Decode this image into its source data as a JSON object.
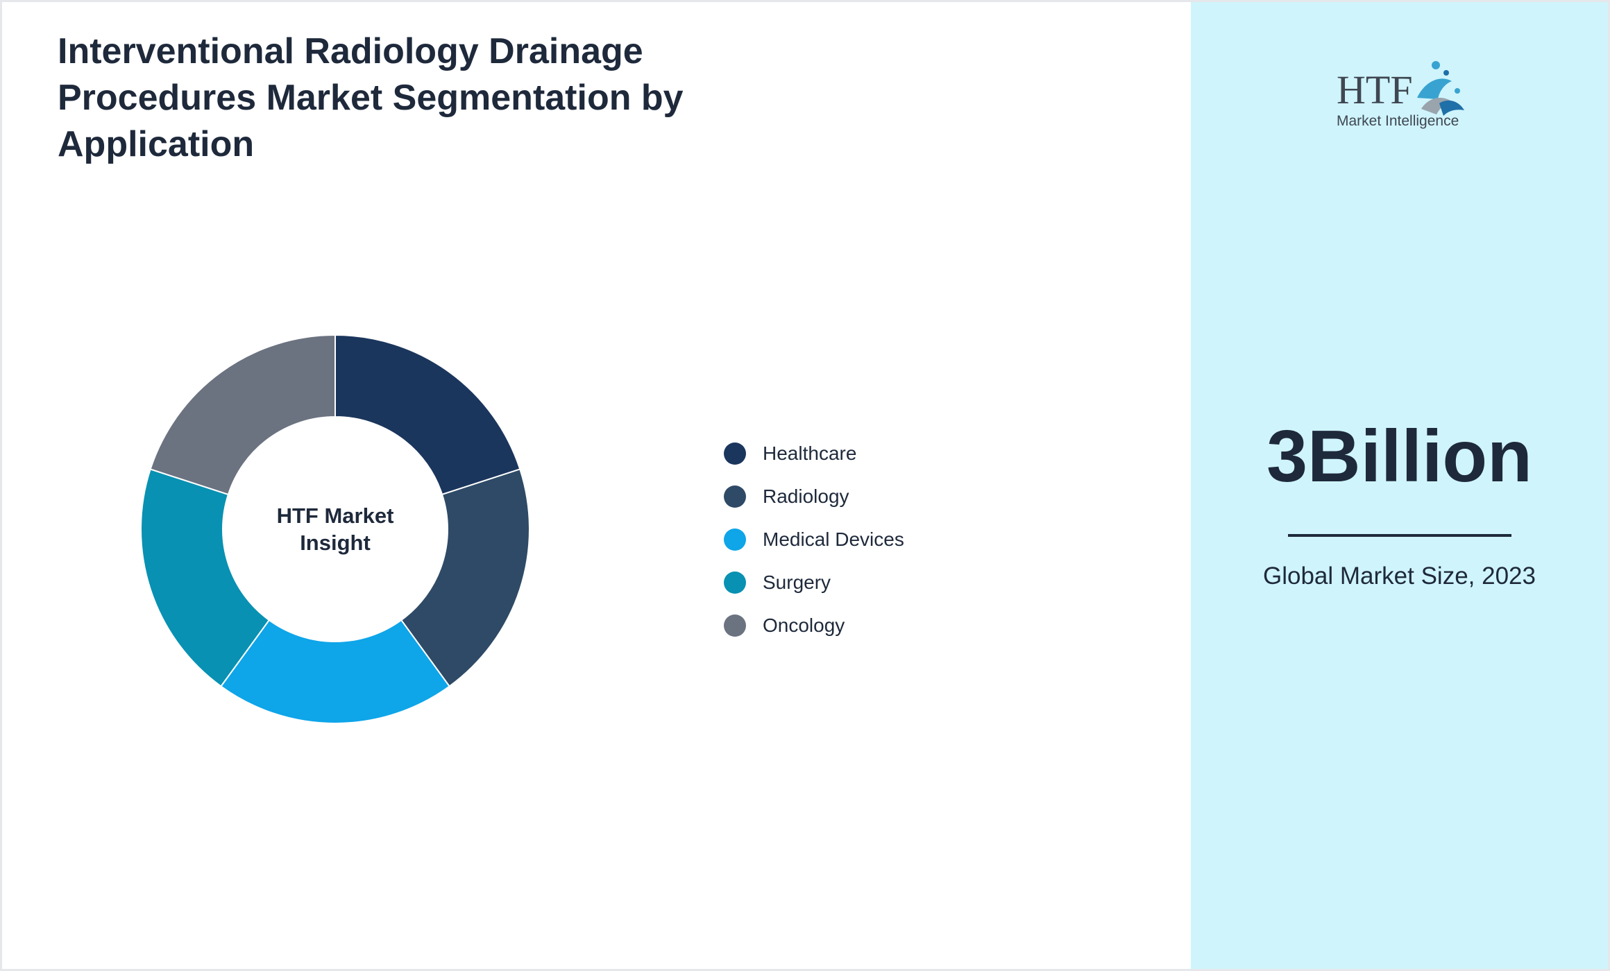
{
  "title": "Interventional Radiology Drainage Procedures Market Segmentation by Application",
  "chart_data": {
    "type": "pie",
    "title": "Interventional Radiology Drainage Procedures Market Segmentation by Application",
    "center_label": "HTF Market Insight",
    "categories": [
      "Healthcare",
      "Radiology",
      "Medical Devices",
      "Surgery",
      "Oncology"
    ],
    "values": [
      20,
      20,
      20,
      20,
      20
    ],
    "colors": [
      "#1b365d",
      "#2e4a66",
      "#0ea5e9",
      "#0891b2",
      "#6b7280"
    ],
    "legend_position": "right"
  },
  "legend": {
    "items": [
      {
        "label": "Healthcare",
        "color": "#1b365d"
      },
      {
        "label": "Radiology",
        "color": "#2e4a66"
      },
      {
        "label": "Medical Devices",
        "color": "#0ea5e9"
      },
      {
        "label": "Surgery",
        "color": "#0891b2"
      },
      {
        "label": "Oncology",
        "color": "#6b7280"
      }
    ]
  },
  "side_panel": {
    "logo": {
      "text": "HTF",
      "subtitle": "Market Intelligence"
    },
    "value": "3Billion",
    "caption": "Global Market Size, 2023",
    "background": "#cff4fc"
  }
}
